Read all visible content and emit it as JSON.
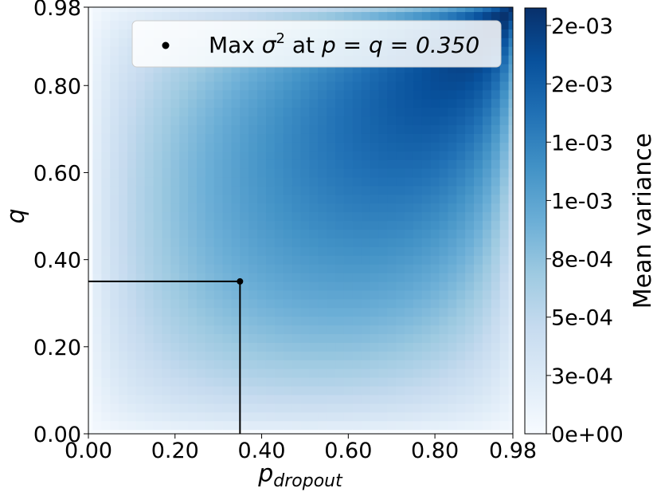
{
  "chart_data": {
    "type": "heatmap",
    "title": "",
    "xlabel": "p",
    "xlabel_sub": "dropout",
    "ylabel": "q",
    "x_ticks": [
      "0.00",
      "0.20",
      "0.40",
      "0.60",
      "0.80",
      "0.98"
    ],
    "y_ticks": [
      "0.00",
      "0.20",
      "0.40",
      "0.60",
      "0.80",
      "0.98"
    ],
    "x_range": [
      0.0,
      0.98
    ],
    "y_range": [
      0.0,
      0.98
    ],
    "grid_step": 0.02,
    "colormap": "Blues",
    "colorbar_label": "Mean variance",
    "colorbar_ticks": [
      "0e+00",
      "3e-04",
      "5e-04",
      "8e-04",
      "1e-03",
      "1e-03",
      "2e-03",
      "2e-03"
    ],
    "colorbar_range": [
      0.0,
      0.00195
    ],
    "value_model": "mean variance ~ p * q * (1 - p) * (1 - q) / (1 - p*q)^2 style surface, max near p = q = 0.35",
    "max_point": {
      "p": 0.35,
      "q": 0.35
    },
    "legend": {
      "position": "top-right",
      "text_prefix": "Max ",
      "symbol": "σ",
      "power": "2",
      "text_mid": " at ",
      "eq": "p = q = 0.350"
    },
    "grid": false
  }
}
